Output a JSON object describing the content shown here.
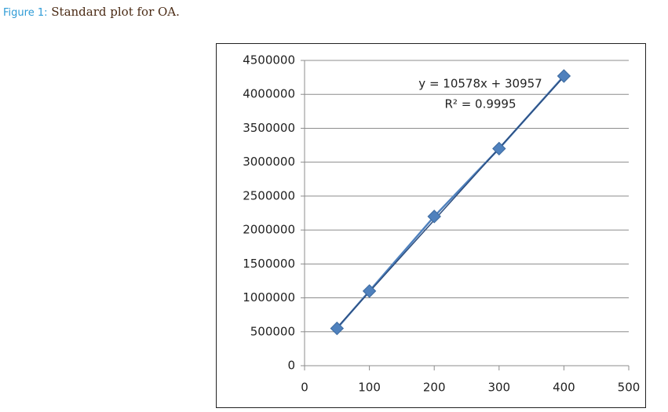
{
  "caption": {
    "label": "Figure 1:",
    "text": "Standard plot for OA."
  },
  "chart_data": {
    "type": "scatter",
    "x": [
      50,
      100,
      200,
      300,
      400
    ],
    "series": [
      {
        "color": "#4f81bd",
        "values": [
          550000,
          1100000,
          2200000,
          3200000,
          4270000
        ]
      }
    ],
    "trendline": {
      "slope": 10578,
      "intercept": 30957,
      "color": "#2c4d7e"
    },
    "annotations": [
      "y = 10578x + 30957",
      "R² = 0.9995"
    ],
    "xlim": [
      0,
      500
    ],
    "xticks": [
      0,
      100,
      200,
      300,
      400,
      500
    ],
    "ylim": [
      0,
      4500000
    ],
    "yticks": [
      0,
      500000,
      1000000,
      1500000,
      2000000,
      2500000,
      3000000,
      3500000,
      4000000,
      4500000
    ],
    "grid": true
  }
}
